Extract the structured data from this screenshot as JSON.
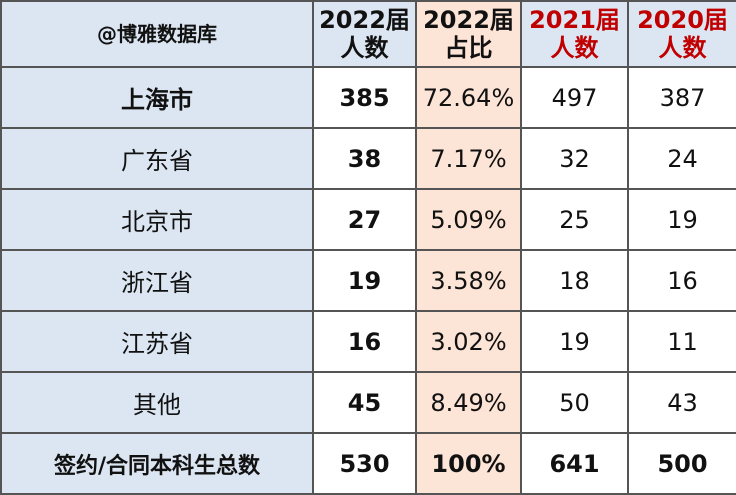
{
  "header": {
    "corner": "@博雅数据库",
    "columns": [
      [
        "2022届",
        "人数"
      ],
      [
        "2022届",
        "占比"
      ],
      [
        "2021届",
        "人数"
      ],
      [
        "2020届",
        "人数"
      ]
    ]
  },
  "table": {
    "rows": [
      [
        "上海市",
        "385",
        "72.64%",
        "497",
        "387"
      ],
      [
        "广东省",
        "38",
        "7.17%",
        "32",
        "24"
      ],
      [
        "北京市",
        "27",
        "5.09%",
        "25",
        "19"
      ],
      [
        "浙江省",
        "19",
        "3.58%",
        "18",
        "16"
      ],
      [
        "江苏省",
        "16",
        "3.02%",
        "19",
        "11"
      ],
      [
        "其他",
        "45",
        "8.49%",
        "50",
        "43"
      ]
    ],
    "total": [
      "签约/合同本科生总数",
      "530",
      "100%",
      "641",
      "500"
    ]
  }
}
